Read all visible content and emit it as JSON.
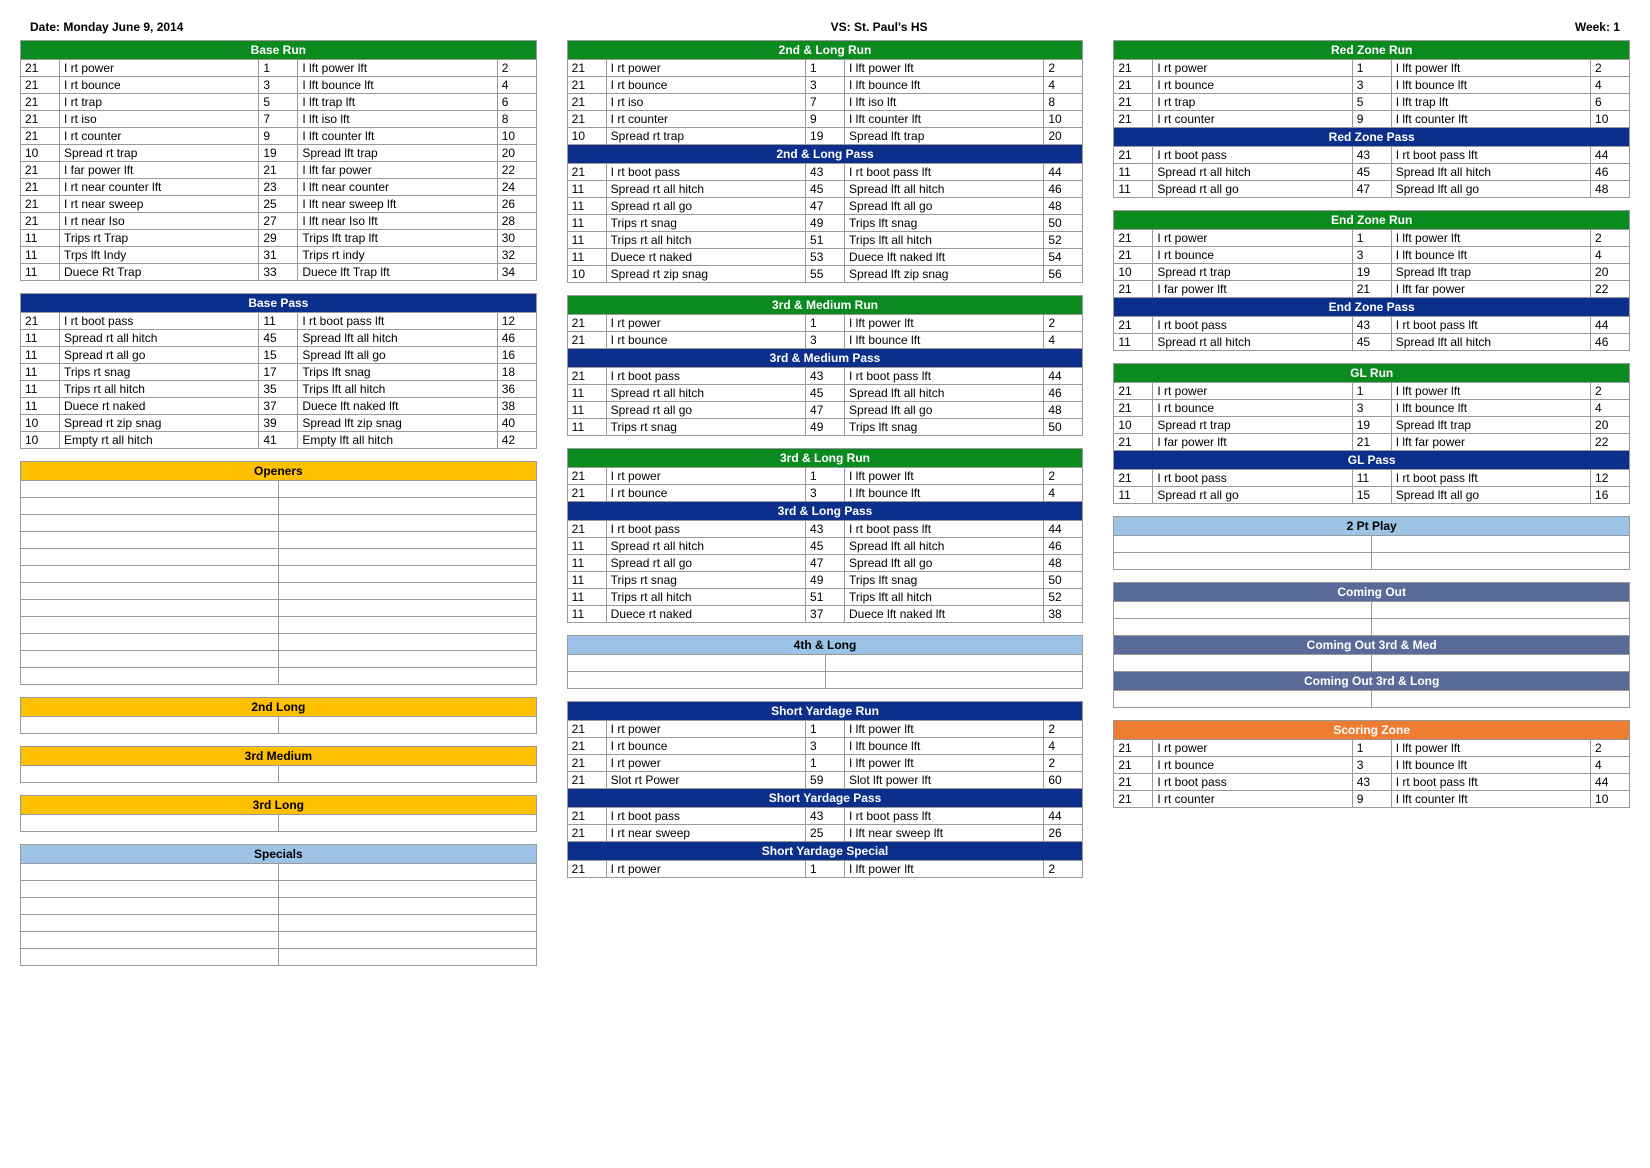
{
  "header": {
    "date_label": "Date: Monday June 9, 2014",
    "vs_label": "VS: St. Paul's HS",
    "week_label": "Week: 1"
  },
  "colors": {
    "green": "#0b8a1f",
    "blue": "#0b2f8a",
    "yellow": "#ffc000",
    "lightblue": "#9cc3e6",
    "slate": "#5b6b99",
    "orange": "#ed7d31",
    "yellow_text": "#000000",
    "lightblue_text": "#000000",
    "default_text": "#ffffff"
  },
  "columns": [
    [
      {
        "title": "Base Run",
        "color": "green",
        "rows": [
          [
            "21",
            "I rt power",
            "1",
            "I lft power lft",
            "2"
          ],
          [
            "21",
            "I rt bounce",
            "3",
            "I lft bounce lft",
            "4"
          ],
          [
            "21",
            "I rt trap",
            "5",
            "I lft trap lft",
            "6"
          ],
          [
            "21",
            "I rt iso",
            "7",
            "I lft iso lft",
            "8"
          ],
          [
            "21",
            "I rt counter",
            "9",
            "I lft counter lft",
            "10"
          ],
          [
            "10",
            "Spread rt trap",
            "19",
            "Spread lft trap",
            "20"
          ],
          [
            "21",
            "I far power lft",
            "21",
            "I lft far power",
            "22"
          ],
          [
            "21",
            "I rt near counter lft",
            "23",
            "I lft near counter",
            "24"
          ],
          [
            "21",
            "I rt near sweep",
            "25",
            "I lft near sweep lft",
            "26"
          ],
          [
            "21",
            "I rt near Iso",
            "27",
            "I lft near Iso lft",
            "28"
          ],
          [
            "11",
            "Trips rt Trap",
            "29",
            "Trips lft trap lft",
            "30"
          ],
          [
            "11",
            "Trps lft Indy",
            "31",
            "Trips rt indy",
            "32"
          ],
          [
            "11",
            "Duece Rt Trap",
            "33",
            "Duece lft Trap lft",
            "34"
          ]
        ]
      },
      {
        "title": "Base Pass",
        "color": "blue",
        "rows": [
          [
            "21",
            "I rt boot pass",
            "11",
            "I rt boot pass lft",
            "12"
          ],
          [
            "11",
            "Spread rt all hitch",
            "45",
            "Spread lft all hitch",
            "46"
          ],
          [
            "11",
            "Spread rt all go",
            "15",
            "Spread lft all go",
            "16"
          ],
          [
            "11",
            "Trips rt snag",
            "17",
            "Trips lft snag",
            "18"
          ],
          [
            "11",
            "Trips rt all hitch",
            "35",
            "Trips lft all hitch",
            "36"
          ],
          [
            "11",
            "Duece rt naked",
            "37",
            "Duece lft naked lft",
            "38"
          ],
          [
            "10",
            "Spread rt zip snag",
            "39",
            "Spread lft zip snag",
            "40"
          ],
          [
            "10",
            "Empty rt all hitch",
            "41",
            "Empty lft all hitch",
            "42"
          ]
        ]
      },
      {
        "title": "Openers",
        "color": "yellow",
        "blank_rows": 12
      },
      {
        "title": "2nd Long",
        "color": "yellow",
        "blank_rows": 1
      },
      {
        "title": "3rd Medium",
        "color": "yellow",
        "blank_rows": 1
      },
      {
        "title": "3rd Long",
        "color": "yellow",
        "blank_rows": 1
      },
      {
        "title": "Specials",
        "color": "lightblue",
        "blank_rows": 6
      }
    ],
    [
      {
        "group": [
          {
            "title": "2nd & Long Run",
            "color": "green",
            "rows": [
              [
                "21",
                "I rt power",
                "1",
                "I lft power lft",
                "2"
              ],
              [
                "21",
                "I rt bounce",
                "3",
                "I lft bounce lft",
                "4"
              ],
              [
                "21",
                "I rt iso",
                "7",
                "I lft iso lft",
                "8"
              ],
              [
                "21",
                "I rt counter",
                "9",
                "I lft counter lft",
                "10"
              ],
              [
                "10",
                "Spread rt trap",
                "19",
                "Spread lft trap",
                "20"
              ]
            ]
          },
          {
            "title": "2nd & Long Pass",
            "color": "blue",
            "rows": [
              [
                "21",
                "I rt boot pass",
                "43",
                "I rt boot pass lft",
                "44"
              ],
              [
                "11",
                "Spread rt all hitch",
                "45",
                "Spread lft all hitch",
                "46"
              ],
              [
                "11",
                "Spread rt all go",
                "47",
                "Spread lft all go",
                "48"
              ],
              [
                "11",
                "Trips rt snag",
                "49",
                "Trips lft snag",
                "50"
              ],
              [
                "11",
                "Trips rt all hitch",
                "51",
                "Trips lft all hitch",
                "52"
              ],
              [
                "11",
                "Duece rt naked",
                "53",
                "Duece lft naked lft",
                "54"
              ],
              [
                "10",
                "Spread rt zip snag",
                "55",
                "Spread lft zip snag",
                "56"
              ]
            ]
          }
        ]
      },
      {
        "group": [
          {
            "title": "3rd & Medium Run",
            "color": "green",
            "rows": [
              [
                "21",
                "I rt power",
                "1",
                "I lft power lft",
                "2"
              ],
              [
                "21",
                "I rt bounce",
                "3",
                "I lft bounce lft",
                "4"
              ]
            ]
          },
          {
            "title": "3rd & Medium Pass",
            "color": "blue",
            "rows": [
              [
                "21",
                "I rt boot pass",
                "43",
                "I rt boot pass lft",
                "44"
              ],
              [
                "11",
                "Spread rt all hitch",
                "45",
                "Spread lft all hitch",
                "46"
              ],
              [
                "11",
                "Spread rt all go",
                "47",
                "Spread lft all go",
                "48"
              ],
              [
                "11",
                "Trips rt snag",
                "49",
                "Trips lft snag",
                "50"
              ]
            ]
          }
        ]
      },
      {
        "group": [
          {
            "title": "3rd & Long Run",
            "color": "green",
            "rows": [
              [
                "21",
                "I rt power",
                "1",
                "I lft power lft",
                "2"
              ],
              [
                "21",
                "I rt bounce",
                "3",
                "I lft bounce lft",
                "4"
              ]
            ]
          },
          {
            "title": "3rd & Long Pass",
            "color": "blue",
            "rows": [
              [
                "21",
                "I rt boot pass",
                "43",
                "I rt boot pass lft",
                "44"
              ],
              [
                "11",
                "Spread rt all hitch",
                "45",
                "Spread lft all hitch",
                "46"
              ],
              [
                "11",
                "Spread rt all go",
                "47",
                "Spread lft all go",
                "48"
              ],
              [
                "11",
                "Trips rt snag",
                "49",
                "Trips lft snag",
                "50"
              ],
              [
                "11",
                "Trips rt all hitch",
                "51",
                "Trips lft all hitch",
                "52"
              ],
              [
                "11",
                "Duece rt naked",
                "37",
                "Duece lft naked lft",
                "38"
              ]
            ]
          }
        ]
      },
      {
        "title": "4th & Long",
        "color": "lightblue",
        "blank_rows": 2
      },
      {
        "group": [
          {
            "title": "Short Yardage Run",
            "color": "blue",
            "rows": [
              [
                "21",
                "I rt power",
                "1",
                "I lft power lft",
                "2"
              ],
              [
                "21",
                "I rt bounce",
                "3",
                "I lft bounce lft",
                "4"
              ],
              [
                "21",
                "I rt power",
                "1",
                "I lft power lft",
                "2"
              ],
              [
                "21",
                "Slot rt Power",
                "59",
                "Slot lft power lft",
                "60"
              ]
            ]
          },
          {
            "title": "Short Yardage Pass",
            "color": "blue",
            "rows": [
              [
                "21",
                "I rt boot pass",
                "43",
                "I rt boot pass lft",
                "44"
              ],
              [
                "21",
                "I rt near sweep",
                "25",
                "I lft near sweep lft",
                "26"
              ]
            ]
          },
          {
            "title": "Short Yardage Special",
            "color": "blue",
            "rows": [
              [
                "21",
                "I rt power",
                "1",
                "I lft power lft",
                "2"
              ]
            ]
          }
        ]
      }
    ],
    [
      {
        "group": [
          {
            "title": "Red Zone Run",
            "color": "green",
            "rows": [
              [
                "21",
                "I rt power",
                "1",
                "I lft power lft",
                "2"
              ],
              [
                "21",
                "I rt bounce",
                "3",
                "I lft bounce lft",
                "4"
              ],
              [
                "21",
                "I rt trap",
                "5",
                "I lft trap lft",
                "6"
              ],
              [
                "21",
                "I rt counter",
                "9",
                "I lft counter lft",
                "10"
              ]
            ]
          },
          {
            "title": "Red Zone Pass",
            "color": "blue",
            "rows": [
              [
                "21",
                "I rt boot pass",
                "43",
                "I rt boot pass lft",
                "44"
              ],
              [
                "11",
                "Spread rt all hitch",
                "45",
                "Spread lft all hitch",
                "46"
              ],
              [
                "11",
                "Spread rt all go",
                "47",
                "Spread lft all go",
                "48"
              ]
            ]
          }
        ]
      },
      {
        "group": [
          {
            "title": "End Zone Run",
            "color": "green",
            "rows": [
              [
                "21",
                "I rt power",
                "1",
                "I lft power lft",
                "2"
              ],
              [
                "21",
                "I rt bounce",
                "3",
                "I lft bounce lft",
                "4"
              ],
              [
                "10",
                "Spread rt trap",
                "19",
                "Spread lft trap",
                "20"
              ],
              [
                "21",
                "I far power lft",
                "21",
                "I lft far power",
                "22"
              ]
            ]
          },
          {
            "title": "End Zone Pass",
            "color": "blue",
            "rows": [
              [
                "21",
                "I rt boot pass",
                "43",
                "I rt boot pass lft",
                "44"
              ],
              [
                "11",
                "Spread rt all hitch",
                "45",
                "Spread lft all hitch",
                "46"
              ]
            ]
          }
        ]
      },
      {
        "group": [
          {
            "title": "GL Run",
            "color": "green",
            "rows": [
              [
                "21",
                "I rt power",
                "1",
                "I lft power lft",
                "2"
              ],
              [
                "21",
                "I rt bounce",
                "3",
                "I lft bounce lft",
                "4"
              ],
              [
                "10",
                "Spread rt trap",
                "19",
                "Spread lft trap",
                "20"
              ],
              [
                "21",
                "I far power lft",
                "21",
                "I lft far power",
                "22"
              ]
            ]
          },
          {
            "title": "GL Pass",
            "color": "blue",
            "rows": [
              [
                "21",
                "I rt boot pass",
                "11",
                "I rt boot pass lft",
                "12"
              ],
              [
                "11",
                "Spread rt all go",
                "15",
                "Spread lft all go",
                "16"
              ]
            ]
          }
        ]
      },
      {
        "title": "2 Pt Play",
        "color": "lightblue",
        "blank_rows": 2
      },
      {
        "group": [
          {
            "title": "Coming Out",
            "color": "slate",
            "blank_rows": 2
          },
          {
            "title": "Coming Out 3rd & Med",
            "color": "slate",
            "blank_rows": 1
          },
          {
            "title": "Coming Out 3rd & Long",
            "color": "slate",
            "blank_rows": 1
          }
        ]
      },
      {
        "title": "Scoring Zone",
        "color": "orange",
        "rows": [
          [
            "21",
            "I rt power",
            "1",
            "I lft power lft",
            "2"
          ],
          [
            "21",
            "I rt bounce",
            "3",
            "I lft bounce lft",
            "4"
          ],
          [
            "21",
            "I rt boot pass",
            "43",
            "I rt boot pass lft",
            "44"
          ],
          [
            "21",
            "I rt counter",
            "9",
            "I lft counter lft",
            "10"
          ]
        ]
      }
    ]
  ]
}
